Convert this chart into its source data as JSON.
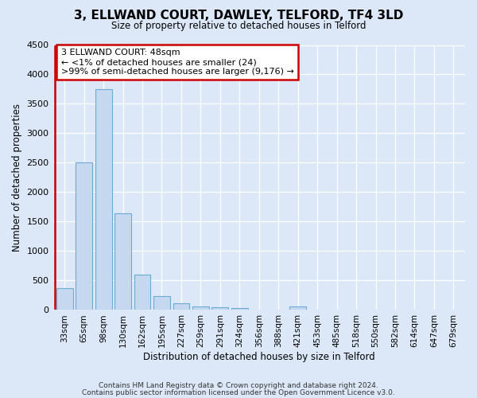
{
  "title": "3, ELLWAND COURT, DAWLEY, TELFORD, TF4 3LD",
  "subtitle": "Size of property relative to detached houses in Telford",
  "xlabel": "Distribution of detached houses by size in Telford",
  "ylabel": "Number of detached properties",
  "categories": [
    "33sqm",
    "65sqm",
    "98sqm",
    "130sqm",
    "162sqm",
    "195sqm",
    "227sqm",
    "259sqm",
    "291sqm",
    "324sqm",
    "356sqm",
    "388sqm",
    "421sqm",
    "453sqm",
    "485sqm",
    "518sqm",
    "550sqm",
    "582sqm",
    "614sqm",
    "647sqm",
    "679sqm"
  ],
  "values": [
    375,
    2500,
    3750,
    1640,
    600,
    240,
    110,
    65,
    40,
    35,
    0,
    0,
    65,
    0,
    0,
    0,
    0,
    0,
    0,
    0,
    0
  ],
  "bar_color": "#c5d8f0",
  "bar_edgecolor": "#6aaad4",
  "annotation_line1": "3 ELLWAND COURT: 48sqm",
  "annotation_line2": "← <1% of detached houses are smaller (24)",
  "annotation_line3": ">99% of semi-detached houses are larger (9,176) →",
  "annotation_box_edgecolor": "#cc0000",
  "marker_line_color": "#cc0000",
  "ylim_min": 0,
  "ylim_max": 4500,
  "yticks": [
    0,
    500,
    1000,
    1500,
    2000,
    2500,
    3000,
    3500,
    4000,
    4500
  ],
  "bg_color": "#dce8f8",
  "plot_bg_color": "#dce8f8",
  "grid_color": "#ffffff",
  "footer_line1": "Contains HM Land Registry data © Crown copyright and database right 2024.",
  "footer_line2": "Contains public sector information licensed under the Open Government Licence v3.0."
}
